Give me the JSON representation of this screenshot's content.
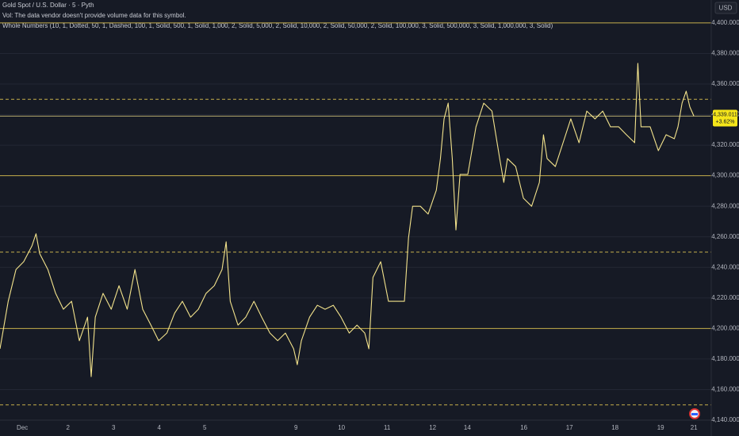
{
  "chart_data": {
    "type": "line",
    "title": "Gold Spot / U.S. Dollar · 5 · Pyth",
    "subtitle": "Vol: The data vendor doesn't provide volume data for this symbol.",
    "annotation": "Whole Numbers (10, 1, Dotted, 50, 1, Dashed, 100, 1, Solid, 500, 1, Solid, 1,000, 2, Solid, 5,000, 2, Solid, 10,000, 2, Solid, 50,000, 2, Solid, 100,000, 3, Solid, 500,000, 3, Solid, 1,000,000, 3, Solid)",
    "currency": "USD",
    "color": "#f3e38c",
    "level_color": "#c4ad4a",
    "grid": true,
    "x": [
      -0.49,
      -0.31,
      -0.14,
      0.03,
      0.21,
      0.3,
      0.38,
      0.56,
      0.73,
      0.9,
      1.08,
      1.25,
      1.43,
      1.51,
      1.6,
      1.77,
      1.95,
      2.12,
      2.3,
      2.47,
      2.64,
      2.82,
      2.99,
      3.17,
      3.34,
      3.51,
      3.69,
      3.86,
      4.03,
      4.21,
      4.38,
      4.47,
      4.56,
      4.73,
      4.9,
      5.08,
      5.25,
      5.43,
      5.6,
      5.77,
      5.95,
      6.03,
      6.12,
      6.3,
      6.47,
      6.64,
      6.82,
      6.99,
      7.17,
      7.34,
      7.51,
      7.6,
      7.69,
      7.86,
      8.03,
      8.21,
      8.38,
      8.47,
      8.56,
      8.73,
      8.9,
      9.08,
      9.17,
      9.25,
      9.34,
      9.43,
      9.51,
      9.6,
      9.77,
      9.95,
      10.12,
      10.3,
      10.47,
      10.56,
      10.64,
      10.82,
      10.99,
      11.17,
      11.34,
      11.43,
      11.51,
      11.69,
      11.86,
      12.03,
      12.21,
      12.38,
      12.56,
      12.73,
      12.9,
      13.08,
      13.25,
      13.43,
      13.5,
      13.57,
      13.77,
      13.95,
      14.12,
      14.3,
      14.38,
      14.47,
      14.56,
      14.64,
      14.73
    ],
    "values": [
      4186.7,
      4217.8,
      4238.6,
      4243.7,
      4254,
      4262,
      4249,
      4238.6,
      4223,
      4212.6,
      4217.8,
      4192,
      4207.4,
      4168.5,
      4207.4,
      4223,
      4212.6,
      4228,
      4212.6,
      4238.6,
      4212.6,
      4202.2,
      4192,
      4197,
      4210,
      4217.8,
      4207.4,
      4212.6,
      4223,
      4228,
      4238.6,
      4256.7,
      4217.8,
      4202.2,
      4207.4,
      4217.8,
      4207.4,
      4197,
      4192,
      4197,
      4186.7,
      4176.3,
      4192,
      4207.4,
      4215.2,
      4212.6,
      4215.2,
      4207.4,
      4197,
      4202.2,
      4197,
      4186.7,
      4233.4,
      4243.7,
      4217.8,
      4217.8,
      4217.8,
      4259.3,
      4280,
      4280,
      4274.9,
      4290.5,
      4311.2,
      4337.2,
      4347.5,
      4311.2,
      4264.5,
      4300.8,
      4300.8,
      4332,
      4347.5,
      4342.3,
      4311.2,
      4295.6,
      4311.2,
      4306,
      4285.3,
      4280,
      4295.6,
      4326.8,
      4311.2,
      4306,
      4321.6,
      4337.2,
      4321.6,
      4342.3,
      4337.2,
      4342.3,
      4332,
      4332,
      4326.8,
      4321.6,
      4373.5,
      4332,
      4332,
      4316.4,
      4326.8,
      4324.2,
      4332,
      4347.5,
      4355.3,
      4345,
      4339
    ],
    "xlim": [
      -0.49,
      15.11
    ],
    "xticks": [
      {
        "value": 0,
        "label": "Dec"
      },
      {
        "value": 1,
        "label": "2"
      },
      {
        "value": 2,
        "label": "3"
      },
      {
        "value": 3,
        "label": "4"
      },
      {
        "value": 4,
        "label": "5"
      },
      {
        "value": 6,
        "label": "9"
      },
      {
        "value": 7,
        "label": "10"
      },
      {
        "value": 8,
        "label": "11"
      },
      {
        "value": 9,
        "label": "12"
      },
      {
        "value": 9.76,
        "label": "14"
      },
      {
        "value": 11,
        "label": "16"
      },
      {
        "value": 12,
        "label": "17"
      },
      {
        "value": 13,
        "label": "18"
      },
      {
        "value": 14,
        "label": "19"
      },
      {
        "value": 14.73,
        "label": "21"
      }
    ],
    "ylim": [
      4140,
      4415
    ],
    "yticks": [
      {
        "value": 4140,
        "label": "4,140.000"
      },
      {
        "value": 4160,
        "label": "4,160.000"
      },
      {
        "value": 4180,
        "label": "4,180.000"
      },
      {
        "value": 4200,
        "label": "4,200.000"
      },
      {
        "value": 4220,
        "label": "4,220.000"
      },
      {
        "value": 4240,
        "label": "4,240.000"
      },
      {
        "value": 4260,
        "label": "4,260.000"
      },
      {
        "value": 4280,
        "label": "4,280.000"
      },
      {
        "value": 4300,
        "label": "4,300.000"
      },
      {
        "value": 4320,
        "label": "4,320.000"
      },
      {
        "value": 4340,
        "label": "4,340.000"
      },
      {
        "value": 4360,
        "label": "4,360.000"
      },
      {
        "value": 4380,
        "label": "4,380.000"
      },
      {
        "value": 4400,
        "label": "4,400.000"
      }
    ],
    "levels": [
      {
        "value": 4400,
        "style": "solid"
      },
      {
        "value": 4350,
        "style": "dashed"
      },
      {
        "value": 4300,
        "style": "solid"
      },
      {
        "value": 4250,
        "style": "dashed"
      },
      {
        "value": 4200,
        "style": "solid"
      },
      {
        "value": 4150,
        "style": "dashed"
      }
    ],
    "last_price": {
      "value": 4339.011,
      "label": "4,339.011"
    },
    "change": {
      "value": 3.62,
      "label": "+3.62%"
    }
  }
}
